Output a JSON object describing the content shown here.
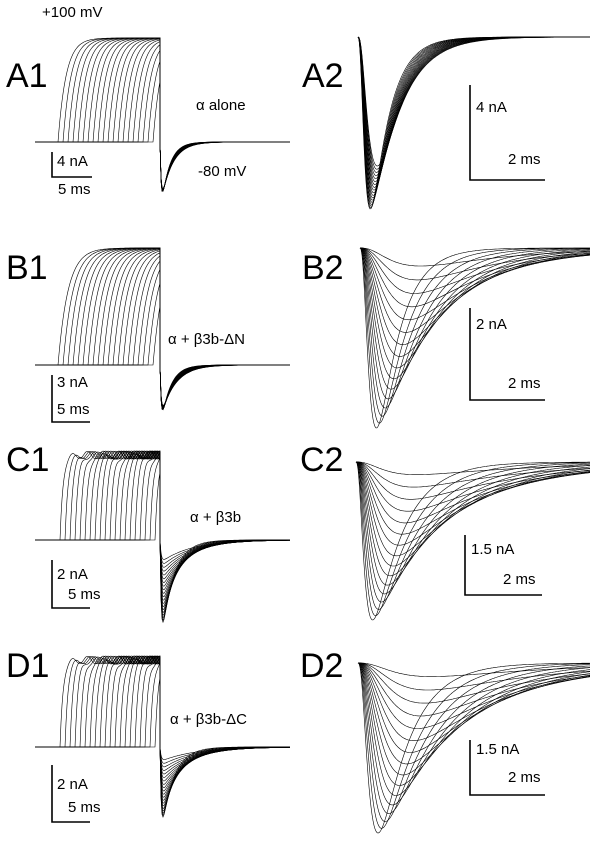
{
  "panels": [
    {
      "label": "A1",
      "step_top": "+100 mV",
      "condition": "α alone",
      "holding": "-80 mV",
      "scale_current": "4 nA",
      "scale_time": "5 ms"
    },
    {
      "label": "A2",
      "scale_current": "4 nA",
      "scale_time": "2 ms"
    },
    {
      "label": "B1",
      "condition": "α + β3b-ΔN",
      "scale_current": "3 nA",
      "scale_time": "5 ms"
    },
    {
      "label": "B2",
      "scale_current": "2 nA",
      "scale_time": "2 ms"
    },
    {
      "label": "C1",
      "condition": "α + β3b",
      "scale_current": "2 nA",
      "scale_time": "5 ms"
    },
    {
      "label": "C2",
      "scale_current": "1.5 nA",
      "scale_time": "2 ms"
    },
    {
      "label": "D1",
      "condition": "α + β3b-ΔC",
      "scale_current": "2 nA",
      "scale_time": "5 ms"
    },
    {
      "label": "D2",
      "scale_current": "1.5 nA",
      "scale_time": "2 ms"
    }
  ]
}
